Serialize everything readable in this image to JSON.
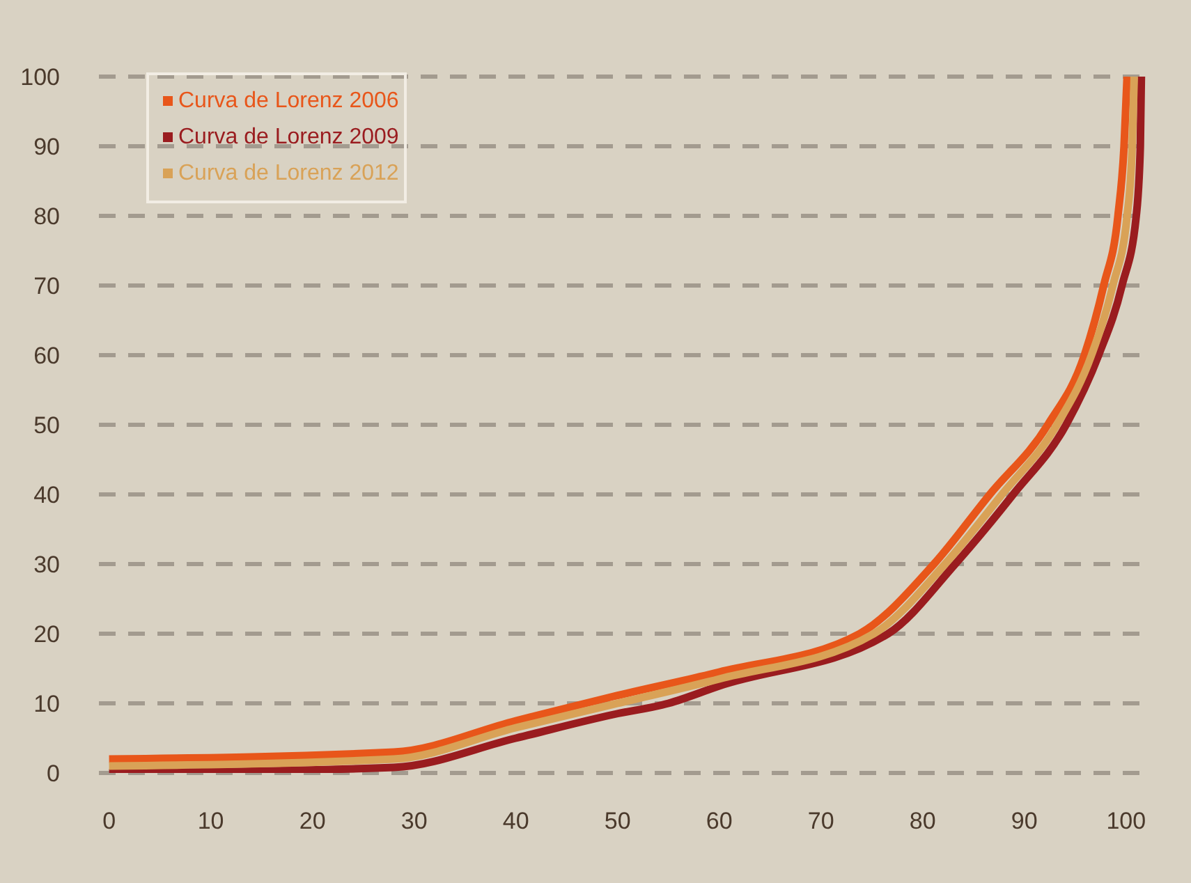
{
  "chart_data": {
    "type": "line",
    "xlim": [
      -1,
      102
    ],
    "xticks": [
      0,
      10,
      20,
      30,
      40,
      50,
      60,
      70,
      80,
      90,
      100
    ],
    "ylim": [
      0,
      100
    ],
    "yticks": [
      0,
      10,
      20,
      30,
      40,
      50,
      60,
      70,
      80,
      90,
      100
    ],
    "grid": "y",
    "legend": "top left",
    "line_style": "solid",
    "series": [
      {
        "name": "Curva de Lorenz 2006",
        "color": "#e8561a",
        "x": [
          0,
          28,
          40,
          49.6,
          60,
          73.8,
          81.1,
          86.6,
          92.3,
          95.9,
          97.8,
          99.2,
          99.8,
          100.1
        ],
        "values": [
          2,
          3,
          7.5,
          11,
          14.5,
          20,
          30,
          40,
          50,
          60,
          70,
          80,
          90,
          100
        ]
      },
      {
        "name": "Curva de Lorenz 2009",
        "color": "#9a1c1f",
        "x": [
          0,
          28,
          40,
          49.6,
          55,
          60,
          76.6,
          83.2,
          88.9,
          94.1,
          97.3,
          99.6,
          101,
          101.4,
          101.5
        ],
        "values": [
          0,
          0.8,
          5,
          8.4,
          10,
          12.5,
          20,
          30,
          40,
          50,
          60,
          70,
          80,
          90,
          100
        ]
      },
      {
        "name": "Curva de Lorenz 2012",
        "color": "#d9a257",
        "x": [
          0,
          28,
          40,
          50,
          60,
          75.2,
          82.2,
          87.8,
          93.2,
          96.6,
          98.7,
          100.1,
          100.6,
          100.8
        ],
        "values": [
          1,
          2,
          6.5,
          10,
          13.5,
          20,
          30,
          40,
          50,
          60,
          70,
          80,
          90,
          100
        ]
      }
    ]
  }
}
